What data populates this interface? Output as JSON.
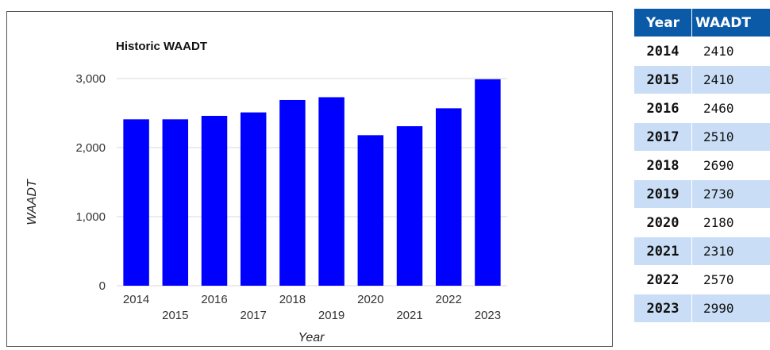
{
  "chart_data": {
    "type": "bar",
    "title": "Historic WAADT",
    "xlabel": "Year",
    "ylabel": "WAADT",
    "categories": [
      "2014",
      "2015",
      "2016",
      "2017",
      "2018",
      "2019",
      "2020",
      "2021",
      "2022",
      "2023"
    ],
    "values": [
      2410,
      2410,
      2460,
      2510,
      2690,
      2730,
      2180,
      2310,
      2570,
      2990
    ],
    "ylim": [
      0,
      3000
    ],
    "yticks": [
      0,
      1000,
      2000,
      3000
    ],
    "ytick_labels": [
      "0",
      "1,000",
      "2,000",
      "3,000"
    ],
    "grid": true,
    "bar_color": "#0000ff",
    "grid_color": "#d8d8d8"
  },
  "table": {
    "headers": [
      "Year",
      "WAADT"
    ],
    "header_color": "#0a5aa8",
    "alt_row_color": "#c9def6",
    "rows": [
      [
        "2014",
        "2410"
      ],
      [
        "2015",
        "2410"
      ],
      [
        "2016",
        "2460"
      ],
      [
        "2017",
        "2510"
      ],
      [
        "2018",
        "2690"
      ],
      [
        "2019",
        "2730"
      ],
      [
        "2020",
        "2180"
      ],
      [
        "2021",
        "2310"
      ],
      [
        "2022",
        "2570"
      ],
      [
        "2023",
        "2990"
      ]
    ]
  }
}
